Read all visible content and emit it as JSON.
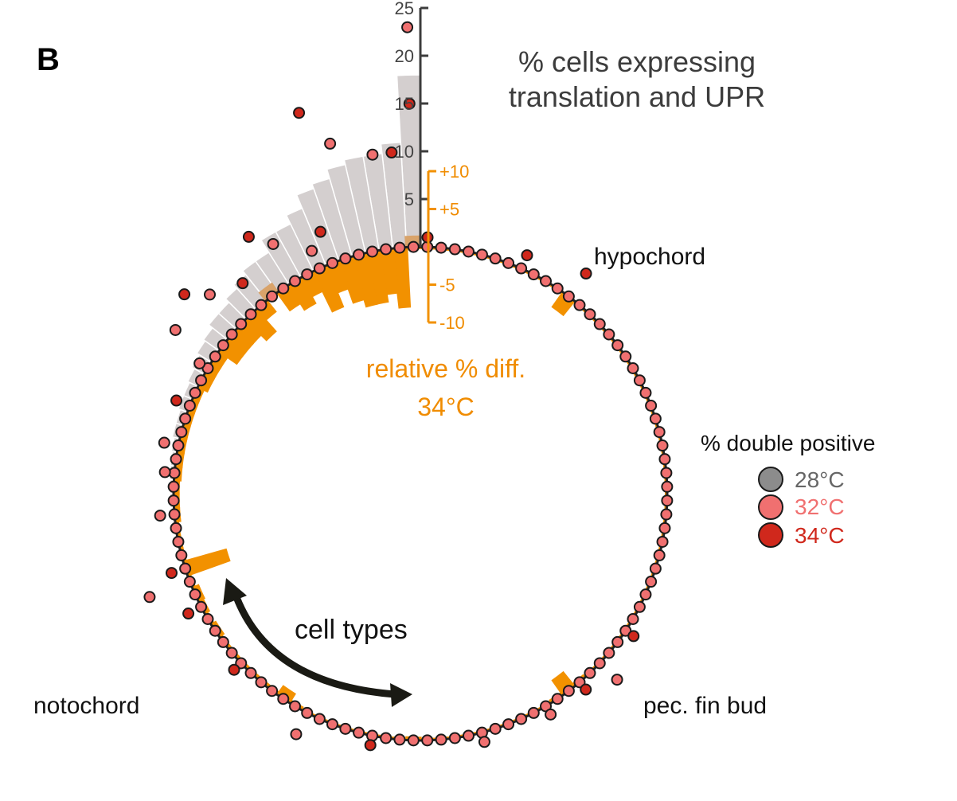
{
  "panel_label": "B",
  "colors": {
    "bar_gray": "#d4cfcf",
    "bar_gray_edge": "#a9a4a4",
    "diff_orange": "#f29100",
    "diff_orange_light": "#d9a36a",
    "ring": "#222222",
    "c28": "#8c8c8c",
    "c32": "#f07070",
    "c34": "#d0281c",
    "text_32": "#f07070",
    "text_34": "#d0281c"
  },
  "chart_data": {
    "type": "circular-bar",
    "title": "% cells expressing translation and UPR",
    "subtitle": "relative % diff. 34°C",
    "outer_axis": {
      "ticks": [
        "5",
        "10",
        "15",
        "20",
        "25"
      ],
      "range": [
        0,
        25
      ]
    },
    "diff_axis": {
      "ticks": [
        "+10",
        "+5",
        "-5",
        "-10"
      ],
      "range": [
        -10,
        10
      ]
    },
    "legend": {
      "title": "% double positive",
      "items": [
        {
          "label": "28°C",
          "color": "#8c8c8c"
        },
        {
          "label": "32°C",
          "color": "#f07070"
        },
        {
          "label": "34°C",
          "color": "#d0281c"
        }
      ],
      "placement": "right"
    },
    "annotations": {
      "hypochord": "hypochord",
      "pec_fin_bud": "pec. fin bud",
      "notochord": "notochord",
      "cell_types": "cell types"
    },
    "n_cell_types": 112,
    "pct_expressing": [
      18,
      11,
      10,
      10,
      9.5,
      8.5,
      8,
      6.5,
      5.5,
      5.5,
      4,
      4,
      3.5,
      3,
      2.5,
      2.5,
      2,
      1.8,
      1.5,
      1.2,
      1,
      1,
      0.8,
      0.8,
      0.6,
      0.5,
      0.5,
      0.4,
      0.4,
      0.3,
      0.3,
      0.3,
      0.2,
      0.2,
      0.2,
      0.2,
      0.2,
      0.1,
      0.1,
      0.1,
      0.1,
      0.1,
      0.1,
      0.1,
      0.1,
      0.1,
      0.1,
      0.1,
      0.1,
      0.1,
      0.1,
      0.1,
      0.1,
      0.1,
      0.1,
      0.1,
      0.1,
      0.1,
      0.1,
      0.1,
      0.1,
      0.1,
      0.1,
      0.1,
      0.1,
      0.1,
      0.1,
      0.1,
      0.1,
      0.1,
      0.1,
      0.1,
      0.1,
      0.1,
      0.1,
      0.1,
      0.1,
      0.1,
      0.1,
      0.1,
      0.1,
      0.1,
      0.1,
      0.1,
      0.1,
      0.1,
      0.1,
      0.1,
      0.1,
      0.1,
      0.1,
      0.1,
      0.1,
      0.1,
      0.1,
      0.1,
      0.1,
      0.1,
      0.1,
      0.1,
      0.1,
      0.1,
      0.1,
      0.1,
      0.1,
      0.1,
      0.1,
      0.1,
      0.1,
      0.1,
      0.1,
      0.1
    ],
    "rel_diff_34": [
      1.5,
      -8,
      -6,
      -7,
      -7,
      -6,
      -4,
      -6,
      -3,
      -4,
      -3,
      1.5,
      -2,
      -4,
      -3,
      -3,
      -3,
      -1.5,
      -1.5,
      -1.5,
      -1,
      -1,
      -1,
      -1,
      -1,
      -1,
      -1,
      -0.8,
      -0.8,
      -0.8,
      -0.5,
      -0.5,
      -0.5,
      -6,
      -0.5,
      -1,
      -0.8,
      -0.5,
      -0.8,
      -0.5,
      -0.5,
      -0.5,
      -0.5,
      -0.5,
      -0.5,
      -1.5,
      -0.5,
      -0.3,
      -0.3,
      -0.3,
      -0.3,
      -0.3,
      -0.3,
      -0.3,
      -0.3,
      -0.5,
      -0.3,
      -0.3,
      -0.3,
      -0.3,
      -0.3,
      -0.3,
      -0.3,
      -0.3,
      -0.3,
      -0.3,
      -0.5,
      -2.5,
      -0.5,
      -0.3,
      -0.3,
      -0.3,
      -0.3,
      -0.3,
      -0.3,
      -0.3,
      -0.3,
      -0.3,
      -0.3,
      -0.3,
      -0.3,
      -0.3,
      -0.3,
      -0.3,
      -0.3,
      -0.3,
      -0.3,
      -0.3,
      -0.3,
      -0.3,
      -0.3,
      -0.3,
      -0.3,
      -0.3,
      -0.3,
      -0.3,
      -0.3,
      -0.3,
      -0.3,
      -0.3,
      -2.5,
      -0.3,
      -0.3,
      -0.3,
      -0.3,
      -0.3,
      -0.3,
      -0.3,
      -0.3,
      -0.3,
      -0.3,
      -0.3
    ],
    "pct_double_positive_32": [
      0,
      0,
      0,
      0,
      0,
      0,
      0,
      0,
      0,
      0,
      0,
      0,
      0,
      0,
      0,
      0,
      0,
      0,
      0,
      0,
      0,
      0,
      0,
      0,
      0,
      0,
      0,
      0,
      0,
      0,
      0,
      0,
      0,
      0,
      0,
      0,
      0,
      0,
      0,
      0,
      0,
      0,
      0,
      0,
      0,
      0,
      0,
      0,
      0,
      0,
      0,
      0,
      0,
      0,
      0,
      0,
      0,
      0,
      0,
      0,
      0,
      0,
      0,
      0,
      0,
      0,
      0,
      0,
      0,
      0,
      0,
      0,
      0,
      0,
      0,
      0,
      0,
      0,
      0,
      0,
      0,
      0,
      0,
      0,
      0,
      0,
      0,
      0,
      0,
      0,
      0,
      0,
      0,
      0,
      0,
      0,
      0,
      0,
      0,
      0,
      0,
      0,
      0,
      0,
      0,
      0,
      0,
      0,
      0,
      0,
      0,
      0
    ],
    "pct_double_positive_34": [
      0,
      0,
      0,
      0,
      0,
      0,
      0,
      0,
      0,
      0,
      0,
      0,
      0,
      0,
      0,
      0,
      0,
      0,
      0,
      0,
      0,
      0,
      0,
      0,
      0,
      0,
      0,
      0,
      0,
      0,
      0,
      0,
      0,
      0,
      0,
      0,
      0,
      0,
      0,
      0,
      0,
      0,
      0,
      0,
      0,
      0,
      0,
      0,
      0,
      0,
      0,
      0,
      0,
      0,
      0,
      0,
      0,
      0,
      0,
      0,
      0,
      0,
      0,
      0,
      0,
      0,
      0,
      0,
      0,
      0,
      0,
      0,
      0,
      0,
      0,
      0,
      0,
      0,
      0,
      0,
      0,
      0,
      0,
      0,
      0,
      0,
      0,
      0,
      0,
      0,
      0,
      0,
      0,
      0,
      0,
      0,
      0,
      0,
      0,
      0,
      0,
      0,
      0,
      0,
      0,
      0,
      0,
      0,
      0,
      0,
      0,
      0
    ],
    "outliers": [
      {
        "cell_index": 0,
        "series": "32°C",
        "pct": 23
      },
      {
        "cell_index": 0,
        "series": "34°C",
        "pct": 15
      },
      {
        "cell_index": 1,
        "series": "34°C",
        "pct": 10
      },
      {
        "cell_index": 2,
        "series": "32°C",
        "pct": 10
      },
      {
        "cell_index": 4,
        "series": "32°C",
        "pct": 12
      },
      {
        "cell_index": 5,
        "series": "34°C",
        "pct": 16
      },
      {
        "cell_index": 6,
        "series": "34°C",
        "pct": 3.5
      },
      {
        "cell_index": 7,
        "series": "32°C",
        "pct": 2
      },
      {
        "cell_index": 9,
        "series": "32°C",
        "pct": 4.5
      },
      {
        "cell_index": 10,
        "series": "34°C",
        "pct": 6.5
      },
      {
        "cell_index": 12,
        "series": "34°C",
        "pct": 3
      },
      {
        "cell_index": 14,
        "series": "32°C",
        "pct": 4.5
      },
      {
        "cell_index": 15,
        "series": "34°C",
        "pct": 6.5
      },
      {
        "cell_index": 17,
        "series": "32°C",
        "pct": 5
      },
      {
        "cell_index": 18,
        "series": "32°C",
        "pct": 1
      },
      {
        "cell_index": 21,
        "series": "34°C",
        "pct": 1.5
      },
      {
        "cell_index": 24,
        "series": "32°C",
        "pct": 1.5
      },
      {
        "cell_index": 26,
        "series": "32°C",
        "pct": 1
      },
      {
        "cell_index": 29,
        "series": "32°C",
        "pct": 1.5
      },
      {
        "cell_index": 33,
        "series": "34°C",
        "pct": 1.5
      },
      {
        "cell_index": 34,
        "series": "32°C",
        "pct": 4.5
      },
      {
        "cell_index": 36,
        "series": "34°C",
        "pct": 1.5
      },
      {
        "cell_index": 41,
        "series": "34°C",
        "pct": 1
      },
      {
        "cell_index": 47,
        "series": "32°C",
        "pct": 2.5
      },
      {
        "cell_index": 52,
        "series": "34°C",
        "pct": 1
      },
      {
        "cell_index": 60,
        "series": "32°C",
        "pct": 1
      },
      {
        "cell_index": 65,
        "series": "32°C",
        "pct": 1
      },
      {
        "cell_index": 68,
        "series": "34°C",
        "pct": 1
      },
      {
        "cell_index": 70,
        "series": "32°C",
        "pct": 2.5
      },
      {
        "cell_index": 73,
        "series": "34°C",
        "pct": 1
      },
      {
        "cell_index": 100,
        "series": "34°C",
        "pct": 3
      },
      {
        "cell_index": 104,
        "series": "34°C",
        "pct": 1.5
      },
      {
        "cell_index": 111,
        "series": "34°C",
        "pct": 1
      }
    ]
  }
}
